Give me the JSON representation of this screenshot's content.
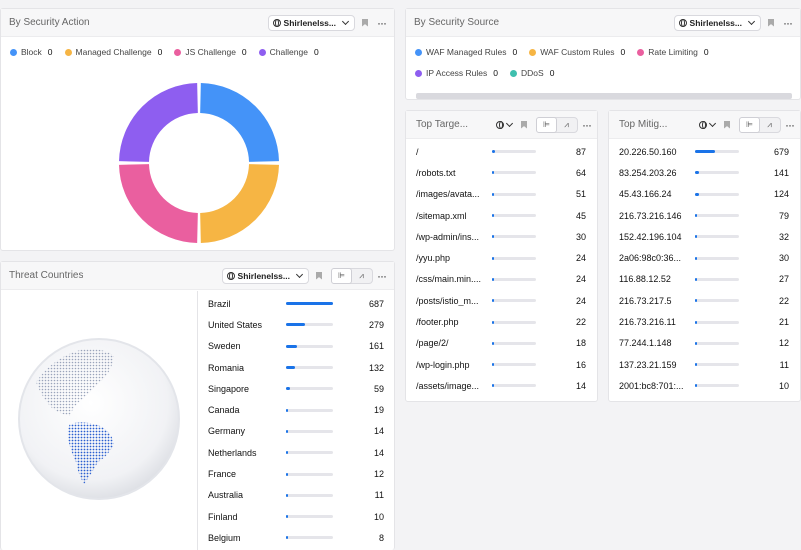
{
  "security_action": {
    "title": "By Security Action",
    "selector": "Shirlenelss...",
    "legend": [
      {
        "label": "Block",
        "value": "0",
        "color": "#4493f8"
      },
      {
        "label": "Managed Challenge",
        "value": "0",
        "color": "#f6b544"
      },
      {
        "label": "JS Challenge",
        "value": "0",
        "color": "#ea5f9f"
      },
      {
        "label": "Challenge",
        "value": "0",
        "color": "#8e5ef0"
      }
    ]
  },
  "security_source": {
    "title": "By Security Source",
    "selector": "Shirlenelss...",
    "legend": [
      {
        "label": "WAF Managed Rules",
        "value": "0",
        "color": "#4493f8"
      },
      {
        "label": "WAF Custom Rules",
        "value": "0",
        "color": "#f6b544"
      },
      {
        "label": "Rate Limiting",
        "value": "0",
        "color": "#ea5f9f"
      },
      {
        "label": "IP Access Rules",
        "value": "0",
        "color": "#8e5ef0"
      },
      {
        "label": "DDoS",
        "value": "0",
        "color": "#3fbfae"
      }
    ]
  },
  "threat_countries": {
    "title": "Threat Countries",
    "selector": "Shirlenelss...",
    "rows": [
      {
        "label": "Brazil",
        "value": "687",
        "ratio": 1.0
      },
      {
        "label": "United States",
        "value": "279",
        "ratio": 0.406
      },
      {
        "label": "Sweden",
        "value": "161",
        "ratio": 0.234
      },
      {
        "label": "Romania",
        "value": "132",
        "ratio": 0.192
      },
      {
        "label": "Singapore",
        "value": "59",
        "ratio": 0.086
      },
      {
        "label": "Canada",
        "value": "19",
        "ratio": 0.028
      },
      {
        "label": "Germany",
        "value": "14",
        "ratio": 0.02
      },
      {
        "label": "Netherlands",
        "value": "14",
        "ratio": 0.02
      },
      {
        "label": "France",
        "value": "12",
        "ratio": 0.017
      },
      {
        "label": "Australia",
        "value": "11",
        "ratio": 0.016
      },
      {
        "label": "Finland",
        "value": "10",
        "ratio": 0.015
      },
      {
        "label": "Belgium",
        "value": "8",
        "ratio": 0.012
      }
    ]
  },
  "top_targets": {
    "title": "Top Targe...",
    "rows": [
      {
        "label": "/",
        "value": "87",
        "ratio": 0.058
      },
      {
        "label": "/robots.txt",
        "value": "64",
        "ratio": 0.04
      },
      {
        "label": "/images/avata...",
        "value": "51",
        "ratio": 0.032
      },
      {
        "label": "/sitemap.xml",
        "value": "45",
        "ratio": 0.03
      },
      {
        "label": "/wp-admin/ins...",
        "value": "30",
        "ratio": 0.02
      },
      {
        "label": "/yyu.php",
        "value": "24",
        "ratio": 0.016
      },
      {
        "label": "/css/main.min....",
        "value": "24",
        "ratio": 0.016
      },
      {
        "label": "/posts/istio_m...",
        "value": "24",
        "ratio": 0.016
      },
      {
        "label": "/footer.php",
        "value": "22",
        "ratio": 0.015
      },
      {
        "label": "/page/2/",
        "value": "18",
        "ratio": 0.012
      },
      {
        "label": "/wp-login.php",
        "value": "16",
        "ratio": 0.011
      },
      {
        "label": "/assets/image...",
        "value": "14",
        "ratio": 0.01
      }
    ]
  },
  "top_mitigated": {
    "title": "Top Mitig...",
    "rows": [
      {
        "label": "20.226.50.160",
        "value": "679",
        "ratio": 0.45
      },
      {
        "label": "83.254.203.26",
        "value": "141",
        "ratio": 0.1
      },
      {
        "label": "45.43.166.24",
        "value": "124",
        "ratio": 0.085
      },
      {
        "label": "216.73.216.146",
        "value": "79",
        "ratio": 0.055
      },
      {
        "label": "152.42.196.104",
        "value": "32",
        "ratio": 0.022
      },
      {
        "label": "2a06:98c0:36...",
        "value": "30",
        "ratio": 0.02
      },
      {
        "label": "116.88.12.52",
        "value": "27",
        "ratio": 0.018
      },
      {
        "label": "216.73.217.5",
        "value": "22",
        "ratio": 0.015
      },
      {
        "label": "216.73.216.11",
        "value": "21",
        "ratio": 0.014
      },
      {
        "label": "77.244.1.148",
        "value": "12",
        "ratio": 0.008
      },
      {
        "label": "137.23.21.159",
        "value": "11",
        "ratio": 0.007
      },
      {
        "label": "2001:bc8:701:...",
        "value": "10",
        "ratio": 0.007
      }
    ]
  },
  "icons": {
    "globe": "globe-icon",
    "chevron": "chevron-down-icon",
    "bookmark": "bookmark-icon",
    "more": "more-horizontal-icon",
    "bar_view": "bar-chart-icon",
    "line_view": "line-chart-icon"
  },
  "colors": {
    "accent": "#1a73e8",
    "block": "#4493f8",
    "managed": "#f6b544",
    "js": "#ea5f9f",
    "challenge": "#8e5ef0",
    "ddos": "#3fbfae"
  }
}
